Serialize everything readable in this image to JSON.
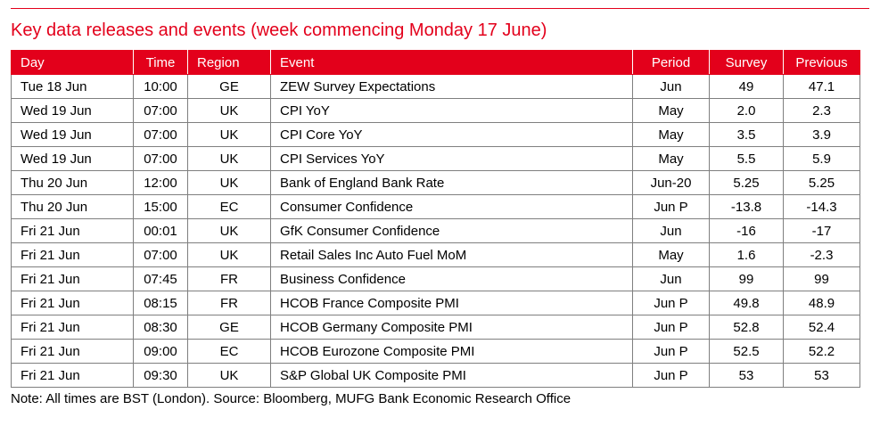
{
  "title": "Key data releases and events (week commencing Monday 17 June)",
  "accent_color": "#e3001b",
  "columns": {
    "day": "Day",
    "time": "Time",
    "region": "Region",
    "event": "Event",
    "period": "Period",
    "survey": "Survey",
    "previous": "Previous"
  },
  "rows": [
    {
      "day": "Tue 18 Jun",
      "time": "10:00",
      "region": "GE",
      "event": "ZEW Survey Expectations",
      "period": "Jun",
      "survey": "49",
      "previous": "47.1"
    },
    {
      "day": "Wed 19 Jun",
      "time": "07:00",
      "region": "UK",
      "event": "CPI YoY",
      "period": "May",
      "survey": "2.0",
      "previous": "2.3"
    },
    {
      "day": "Wed 19 Jun",
      "time": "07:00",
      "region": "UK",
      "event": "CPI Core YoY",
      "period": "May",
      "survey": "3.5",
      "previous": "3.9"
    },
    {
      "day": "Wed 19 Jun",
      "time": "07:00",
      "region": "UK",
      "event": "CPI Services YoY",
      "period": "May",
      "survey": "5.5",
      "previous": "5.9"
    },
    {
      "day": "Thu 20 Jun",
      "time": "12:00",
      "region": "UK",
      "event": "Bank of England Bank Rate",
      "period": "Jun-20",
      "survey": "5.25",
      "previous": "5.25"
    },
    {
      "day": "Thu 20 Jun",
      "time": "15:00",
      "region": "EC",
      "event": "Consumer Confidence",
      "period": "Jun P",
      "survey": "-13.8",
      "previous": "-14.3"
    },
    {
      "day": "Fri 21 Jun",
      "time": "00:01",
      "region": "UK",
      "event": "GfK Consumer Confidence",
      "period": "Jun",
      "survey": "-16",
      "previous": "-17"
    },
    {
      "day": "Fri 21 Jun",
      "time": "07:00",
      "region": "UK",
      "event": "Retail Sales Inc Auto Fuel MoM",
      "period": "May",
      "survey": "1.6",
      "previous": "-2.3"
    },
    {
      "day": "Fri 21 Jun",
      "time": "07:45",
      "region": "FR",
      "event": "Business Confidence",
      "period": "Jun",
      "survey": "99",
      "previous": "99"
    },
    {
      "day": "Fri 21 Jun",
      "time": "08:15",
      "region": "FR",
      "event": "HCOB France Composite PMI",
      "period": "Jun P",
      "survey": "49.8",
      "previous": "48.9"
    },
    {
      "day": "Fri 21 Jun",
      "time": "08:30",
      "region": "GE",
      "event": "HCOB Germany Composite PMI",
      "period": "Jun P",
      "survey": "52.8",
      "previous": "52.4"
    },
    {
      "day": "Fri 21 Jun",
      "time": "09:00",
      "region": "EC",
      "event": "HCOB Eurozone Composite PMI",
      "period": "Jun P",
      "survey": "52.5",
      "previous": "52.2"
    },
    {
      "day": "Fri 21 Jun",
      "time": "09:30",
      "region": "UK",
      "event": "S&P Global UK Composite PMI",
      "period": "Jun P",
      "survey": "53",
      "previous": "53"
    }
  ],
  "note": "Note: All times are BST (London). Source: Bloomberg, MUFG Bank Economic Research Office"
}
